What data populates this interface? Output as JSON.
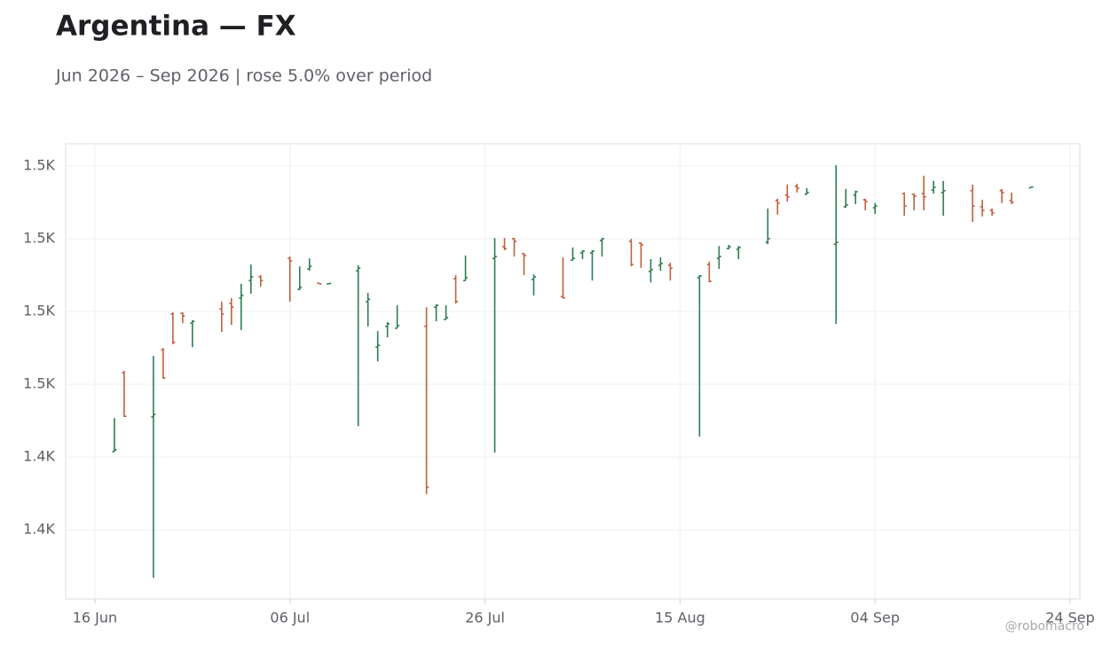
{
  "chart_data": {
    "type": "ohlc",
    "title": "Argentina — FX",
    "subtitle": "Jun 2026 – Sep 2026 | rose 5.0% over period",
    "watermark": "@robomacro",
    "x": [
      "2026-06-18",
      "2026-06-19",
      "2026-06-22",
      "2026-06-23",
      "2026-06-24",
      "2026-06-25",
      "2026-06-26",
      "2026-06-29",
      "2026-06-30",
      "2026-07-01",
      "2026-07-02",
      "2026-07-03",
      "2026-07-06",
      "2026-07-07",
      "2026-07-08",
      "2026-07-09",
      "2026-07-10",
      "2026-07-13",
      "2026-07-14",
      "2026-07-15",
      "2026-07-16",
      "2026-07-17",
      "2026-07-20",
      "2026-07-21",
      "2026-07-22",
      "2026-07-23",
      "2026-07-24",
      "2026-07-27",
      "2026-07-28",
      "2026-07-29",
      "2026-07-30",
      "2026-07-31",
      "2026-08-03",
      "2026-08-04",
      "2026-08-05",
      "2026-08-06",
      "2026-08-07",
      "2026-08-10",
      "2026-08-11",
      "2026-08-12",
      "2026-08-13",
      "2026-08-14",
      "2026-08-17",
      "2026-08-18",
      "2026-08-19",
      "2026-08-20",
      "2026-08-21",
      "2026-08-24",
      "2026-08-25",
      "2026-08-26",
      "2026-08-27",
      "2026-08-28",
      "2026-08-31",
      "2026-09-01",
      "2026-09-02",
      "2026-09-03",
      "2026-09-04",
      "2026-09-07",
      "2026-09-08",
      "2026-09-09",
      "2026-09-10",
      "2026-09-11",
      "2026-09-14",
      "2026-09-15",
      "2026-09-16",
      "2026-09-17",
      "2026-09-18",
      "2026-09-20"
    ],
    "open": [
      1431.5,
      1453.2,
      1441.0,
      1459.5,
      1469.3,
      1469.5,
      1466.8,
      1470.7,
      1472.2,
      1473.7,
      1478.5,
      1479.5,
      1484.6,
      1476.1,
      1481.7,
      1477.8,
      1477.6,
      1481.2,
      1472.7,
      1460.2,
      1465.9,
      1465.4,
      1465.9,
      1471.2,
      1467.8,
      1479.0,
      1478.5,
      1484.6,
      1487.8,
      1490.0,
      1485.9,
      1478.8,
      1474.1,
      1484.1,
      1486.1,
      1486.1,
      1489.5,
      1489.3,
      1488.8,
      1481.0,
      1482.7,
      1482.7,
      1479.3,
      1482.9,
      1484.6,
      1487.3,
      1487.1,
      1489.0,
      1500.5,
      1502.0,
      1504.4,
      1502.2,
      1488.5,
      1498.8,
      1502.0,
      1500.7,
      1498.5,
      1502.4,
      1502.2,
      1502.4,
      1503.4,
      1502.7,
      1503.2,
      1498.8,
      1497.8,
      1503.2,
      1500.5,
      1504.0
    ],
    "high": [
      1440.7,
      1453.7,
      1457.8,
      1460.0,
      1469.8,
      1469.8,
      1467.6,
      1472.7,
      1473.7,
      1477.6,
      1482.9,
      1480.0,
      1485.1,
      1482.4,
      1484.6,
      1477.8,
      1477.7,
      1482.7,
      1475.1,
      1464.6,
      1467.1,
      1471.7,
      1471.2,
      1472.0,
      1471.7,
      1480.0,
      1485.4,
      1490.2,
      1490.2,
      1490.2,
      1486.1,
      1480.2,
      1484.9,
      1487.6,
      1486.8,
      1486.8,
      1490.2,
      1490.0,
      1489.0,
      1484.4,
      1484.9,
      1483.4,
      1480.0,
      1483.7,
      1488.0,
      1488.3,
      1488.0,
      1498.3,
      1501.0,
      1504.9,
      1505.1,
      1503.9,
      1510.2,
      1503.7,
      1503.2,
      1501.0,
      1499.8,
      1502.7,
      1502.4,
      1507.3,
      1505.9,
      1505.9,
      1504.9,
      1500.7,
      1498.3,
      1503.7,
      1502.7,
      1504.2
    ],
    "low": [
      1431.5,
      1441.0,
      1396.8,
      1451.5,
      1461.0,
      1466.8,
      1460.2,
      1464.4,
      1466.3,
      1464.9,
      1474.9,
      1476.8,
      1472.7,
      1475.9,
      1481.2,
      1477.6,
      1477.6,
      1438.5,
      1465.9,
      1456.3,
      1462.9,
      1465.4,
      1419.8,
      1467.3,
      1467.8,
      1472.2,
      1478.5,
      1431.2,
      1486.8,
      1485.1,
      1480.0,
      1474.4,
      1473.7,
      1484.1,
      1484.4,
      1478.5,
      1485.1,
      1482.4,
      1482.0,
      1478.0,
      1481.2,
      1478.5,
      1435.6,
      1478.0,
      1481.7,
      1487.1,
      1484.4,
      1488.5,
      1496.6,
      1500.2,
      1502.7,
      1502.2,
      1466.6,
      1498.5,
      1499.5,
      1497.8,
      1496.8,
      1496.3,
      1497.8,
      1497.8,
      1502.4,
      1496.3,
      1494.6,
      1496.1,
      1496.3,
      1499.8,
      1499.5,
      1504.0
    ],
    "close": [
      1432.0,
      1441.2,
      1441.7,
      1451.7,
      1461.5,
      1468.8,
      1467.3,
      1469.3,
      1471.2,
      1474.4,
      1479.5,
      1478.5,
      1483.9,
      1476.6,
      1482.4,
      1477.6,
      1477.7,
      1481.9,
      1473.4,
      1460.7,
      1466.6,
      1466.1,
      1421.7,
      1471.7,
      1468.3,
      1472.7,
      1479.3,
      1485.1,
      1487.3,
      1489.3,
      1485.4,
      1479.5,
      1473.7,
      1484.6,
      1486.6,
      1486.6,
      1490.0,
      1482.9,
      1488.3,
      1481.5,
      1483.2,
      1481.9,
      1479.8,
      1478.3,
      1485.1,
      1487.8,
      1487.6,
      1490.0,
      1499.8,
      1501.5,
      1503.9,
      1502.7,
      1489.0,
      1499.3,
      1502.9,
      1500.2,
      1499.0,
      1499.0,
      1501.7,
      1501.5,
      1504.1,
      1503.2,
      1499.0,
      1497.8,
      1497.1,
      1502.7,
      1500.0,
      1504.2
    ],
    "up_color": "#2e7d4f",
    "down_color": "#c0603f",
    "xlim": [
      "2026-06-13",
      "2026-09-25"
    ],
    "xticks": [
      {
        "value": "2026-06-16",
        "label": "16 Jun"
      },
      {
        "value": "2026-07-06",
        "label": "06 Jul"
      },
      {
        "value": "2026-07-26",
        "label": "26 Jul"
      },
      {
        "value": "2026-08-15",
        "label": "15 Aug"
      },
      {
        "value": "2026-09-04",
        "label": "04 Sep"
      },
      {
        "value": "2026-09-24",
        "label": "24 Sep"
      }
    ],
    "ylim": [
      1391.0,
      1516.1
    ],
    "yticks": [
      {
        "value": 1410,
        "label": "1.4K"
      },
      {
        "value": 1430,
        "label": "1.4K"
      },
      {
        "value": 1450,
        "label": "1.5K"
      },
      {
        "value": 1470,
        "label": "1.5K"
      },
      {
        "value": 1490,
        "label": "1.5K"
      },
      {
        "value": 1510,
        "label": "1.5K"
      }
    ],
    "grid": true
  }
}
